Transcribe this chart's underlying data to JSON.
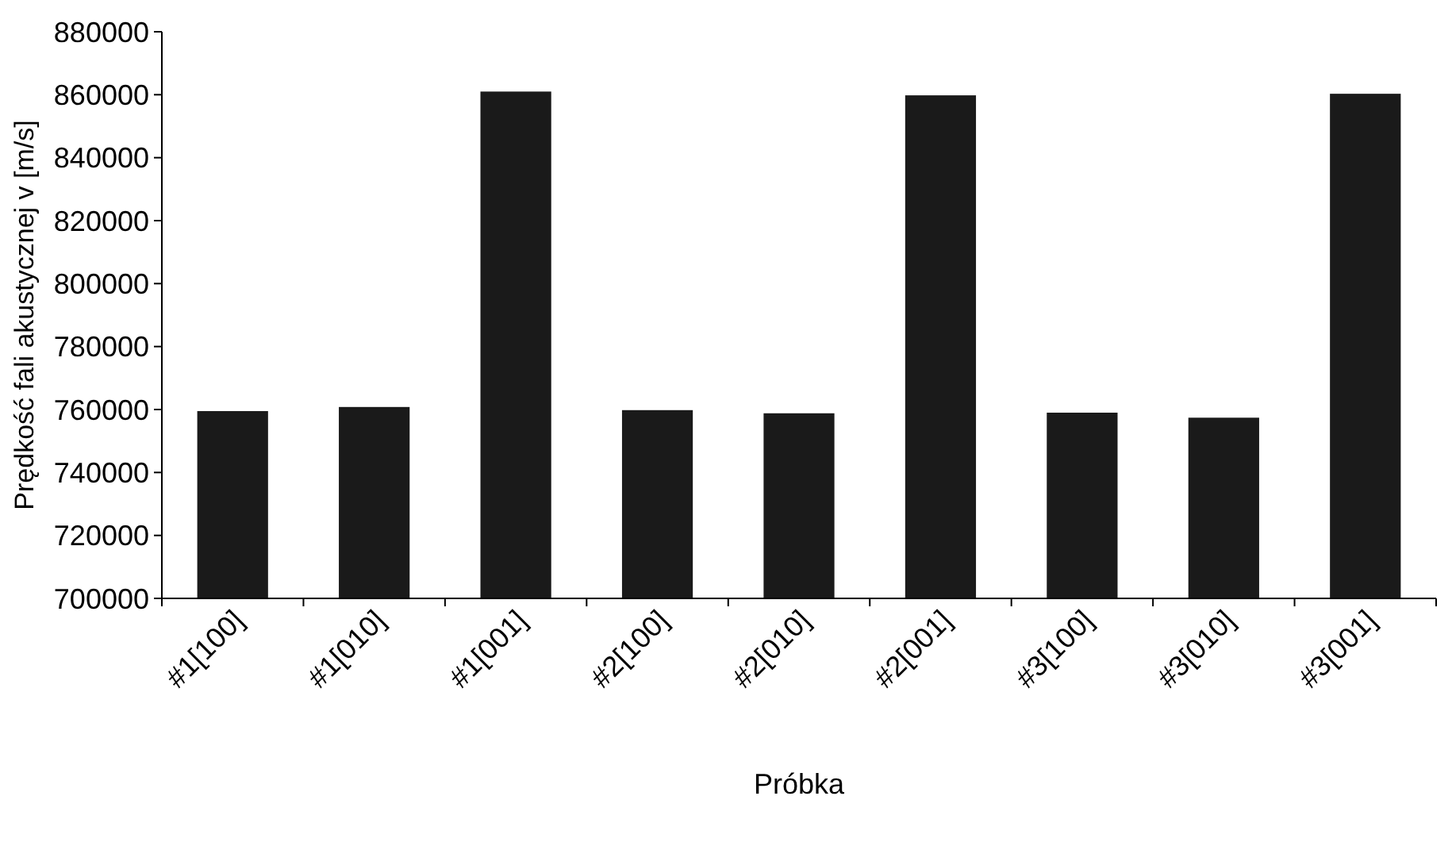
{
  "chart_data": {
    "type": "bar",
    "xlabel": "Próbka",
    "ylabel": "Prędkość fali akustycznej v [m/s]",
    "categories": [
      "#1[100]",
      "#1[010]",
      "#1[001]",
      "#2[100]",
      "#2[010]",
      "#2[001]",
      "#3[100]",
      "#3[010]",
      "#3[001]"
    ],
    "values": [
      759500,
      760800,
      861000,
      759800,
      758800,
      859800,
      759000,
      757400,
      860300
    ],
    "color": "#1a1a1a",
    "ylim": [
      700000,
      880000
    ],
    "yticks": [
      700000,
      720000,
      740000,
      760000,
      780000,
      800000,
      820000,
      840000,
      860000,
      880000
    ],
    "grid": false
  }
}
